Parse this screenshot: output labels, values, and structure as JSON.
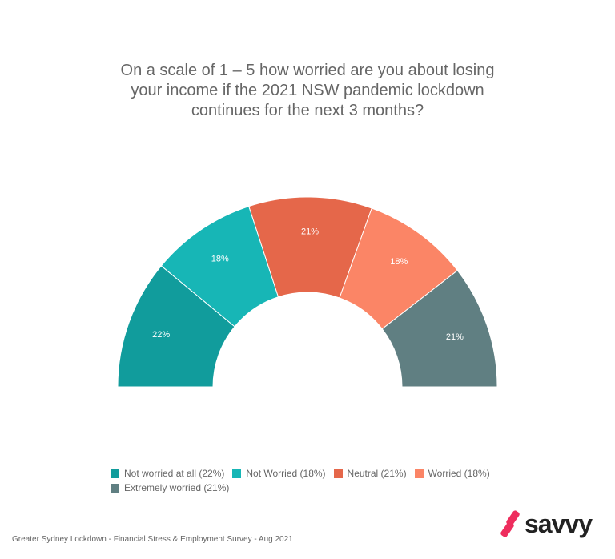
{
  "chart_data": {
    "type": "pie",
    "subtype": "half-donut",
    "title_lines": [
      "On a scale of 1 – 5 how worried are you about losing",
      "your income if the 2021 NSW pandemic lockdown",
      "continues for the next 3 months?"
    ],
    "categories": [
      "Not worried at all",
      "Not Worried",
      "Neutral",
      "Worried",
      "Extremely worried"
    ],
    "values": [
      22,
      18,
      21,
      18,
      21
    ],
    "data_labels": [
      "22%",
      "18%",
      "21%",
      "18%",
      "21%"
    ],
    "legend_labels": [
      "Not worried at all (22%)",
      "Not Worried (18%)",
      "Neutral (21%)",
      "Worried (18%)",
      "Extremely worried (21%)"
    ],
    "colors": [
      "#119c9c",
      "#17b6b6",
      "#e5674a",
      "#fb8566",
      "#607f82"
    ],
    "legend_position": "bottom"
  },
  "footer": "Greater Sydney Lockdown - Financial Stress & Employment Survey - Aug 2021",
  "logo": "savvy"
}
